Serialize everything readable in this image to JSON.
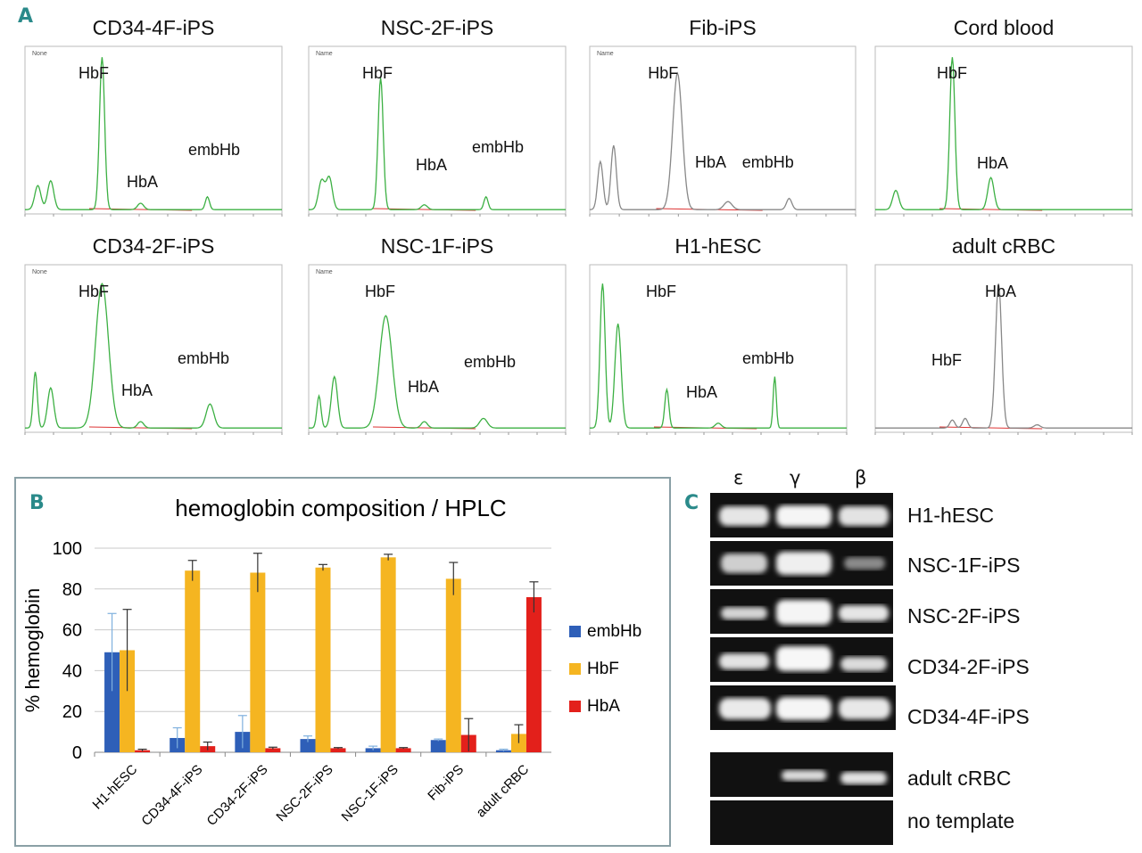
{
  "panel_a": {
    "letter": "A",
    "chromatograms": [
      {
        "title": "CD34-4F-iPS",
        "labels": [
          "HbF",
          "HbA",
          "embHb"
        ],
        "color": "#3cb043",
        "legend": "None"
      },
      {
        "title": "NSC-2F-iPS",
        "labels": [
          "HbF",
          "HbA",
          "embHb"
        ],
        "color": "#3cb043",
        "legend": "Name"
      },
      {
        "title": "Fib-iPS",
        "labels": [
          "HbF",
          "HbA",
          "embHb"
        ],
        "color": "#888888",
        "legend": "Name"
      },
      {
        "title": "Cord blood",
        "labels": [
          "HbF",
          "HbA"
        ],
        "color": "#3cb043",
        "legend": ""
      },
      {
        "title": "CD34-2F-iPS",
        "labels": [
          "HbF",
          "HbA",
          "embHb"
        ],
        "color": "#3cb043",
        "legend": "None"
      },
      {
        "title": "NSC-1F-iPS",
        "labels": [
          "HbF",
          "HbA",
          "embHb"
        ],
        "color": "#3cb043",
        "legend": "Name"
      },
      {
        "title": "H1-hESC",
        "labels": [
          "HbF",
          "HbA",
          "embHb"
        ],
        "color": "#3cb043",
        "legend": ""
      },
      {
        "title": "adult cRBC",
        "labels": [
          "HbA",
          "HbF"
        ],
        "color": "#888888",
        "legend": ""
      }
    ]
  },
  "panel_b": {
    "letter": "B"
  },
  "chart_data": {
    "type": "bar",
    "title": "hemoglobin composition / HPLC",
    "ylabel": "% hemoglobin",
    "xlabel": "",
    "ylim": [
      0,
      100
    ],
    "yticks": [
      0,
      20,
      40,
      60,
      80,
      100
    ],
    "grid": true,
    "legend_position": "right",
    "categories": [
      "H1-hESC",
      "CD34-4F-iPS",
      "CD34-2F-iPS",
      "NSC-2F-iPS",
      "NSC-1F-iPS",
      "Fib-iPS",
      "adult cRBC"
    ],
    "series": [
      {
        "name": "embHb",
        "color": "#2e5fb8",
        "values": [
          49,
          7,
          10,
          6.5,
          2,
          6,
          1
        ],
        "errors": [
          19,
          5,
          8,
          1.5,
          1,
          0.5,
          0.5
        ]
      },
      {
        "name": "HbF",
        "color": "#f5b521",
        "values": [
          50,
          89,
          88,
          90.5,
          95.5,
          85,
          9
        ],
        "errors": [
          20,
          5,
          9.5,
          1.5,
          1.5,
          8,
          4.5
        ]
      },
      {
        "name": "HbA",
        "color": "#e3201b",
        "values": [
          1,
          3,
          2,
          2,
          2,
          8.5,
          76
        ],
        "errors": [
          0.5,
          2,
          0.5,
          0.3,
          0.3,
          8,
          7.5
        ]
      }
    ]
  },
  "panel_c": {
    "letter": "C",
    "lanes": [
      "ε",
      "γ",
      "β"
    ],
    "rows": [
      "H1-hESC",
      "NSC-1F-iPS",
      "NSC-2F-iPS",
      "CD34-2F-iPS",
      "CD34-4F-iPS",
      "adult cRBC",
      "no template"
    ]
  }
}
